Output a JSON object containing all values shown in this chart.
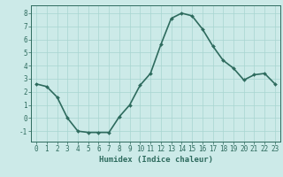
{
  "x": [
    0,
    1,
    2,
    3,
    4,
    5,
    6,
    7,
    8,
    9,
    10,
    11,
    12,
    13,
    14,
    15,
    16,
    17,
    18,
    19,
    20,
    21,
    22,
    23
  ],
  "y": [
    2.6,
    2.4,
    1.6,
    0.0,
    -1.0,
    -1.1,
    -1.1,
    -1.1,
    0.1,
    1.0,
    2.5,
    3.4,
    5.6,
    7.6,
    8.0,
    7.8,
    6.8,
    5.5,
    4.4,
    3.8,
    2.9,
    3.3,
    3.4,
    2.6
  ],
  "line_color": "#2e6b5e",
  "marker": "D",
  "marker_size": 2.0,
  "line_width": 1.2,
  "bg_color": "#cceae8",
  "grid_color": "#a8d5d0",
  "xlabel": "Humidex (Indice chaleur)",
  "xlim": [
    -0.5,
    23.5
  ],
  "ylim": [
    -1.8,
    8.6
  ],
  "yticks": [
    -1,
    0,
    1,
    2,
    3,
    4,
    5,
    6,
    7,
    8
  ],
  "xticks": [
    0,
    1,
    2,
    3,
    4,
    5,
    6,
    7,
    8,
    9,
    10,
    11,
    12,
    13,
    14,
    15,
    16,
    17,
    18,
    19,
    20,
    21,
    22,
    23
  ],
  "tick_color": "#2e6b5e",
  "label_fontsize": 5.5,
  "xlabel_fontsize": 6.5,
  "spine_color": "#2e6b5e"
}
